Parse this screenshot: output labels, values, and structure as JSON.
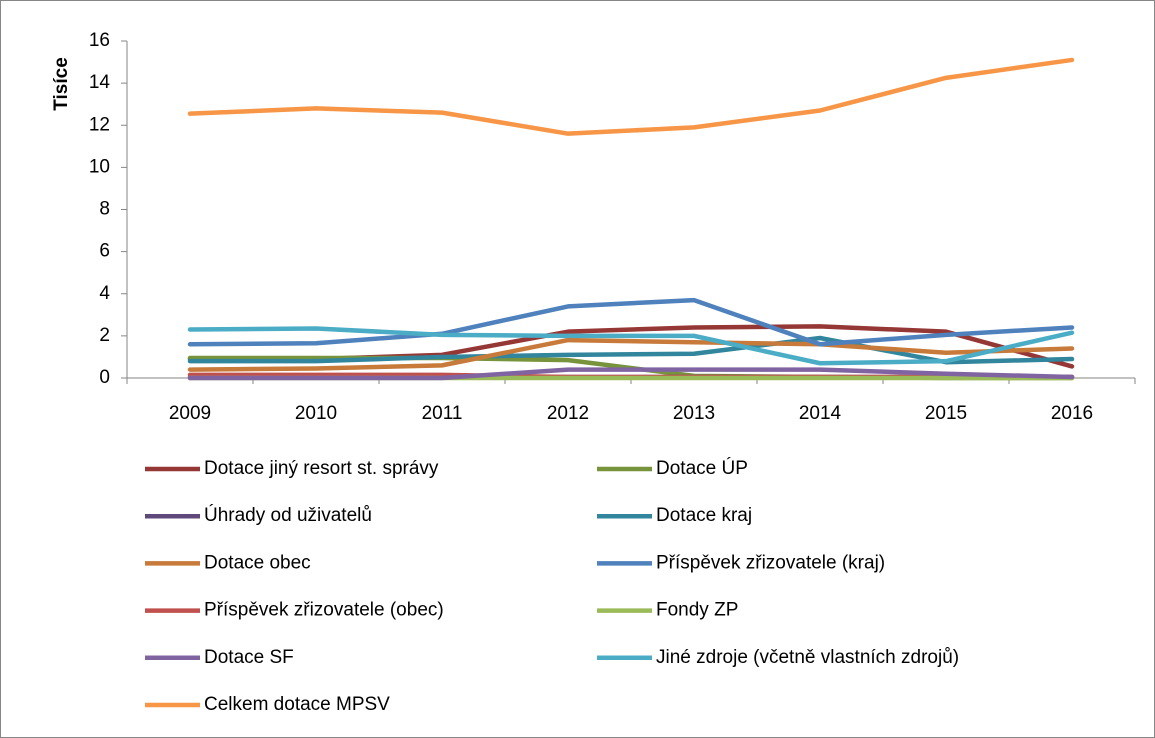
{
  "chart_data": {
    "type": "line",
    "y_label": "Tisíce",
    "categories": [
      "2009",
      "2010",
      "2011",
      "2012",
      "2013",
      "2014",
      "2015",
      "2016"
    ],
    "ylim": [
      0,
      16
    ],
    "yticks": [
      0,
      2,
      4,
      6,
      8,
      10,
      12,
      14,
      16
    ],
    "grid": false,
    "legend": "bottom",
    "series": [
      {
        "name": "Dotace jiný resort st. správy",
        "color": "#953735",
        "values": [
          0.9,
          0.9,
          1.1,
          2.2,
          2.4,
          2.45,
          2.2,
          0.55
        ]
      },
      {
        "name": "Dotace ÚP",
        "color": "#77933c",
        "values": [
          0.95,
          0.95,
          0.95,
          0.85,
          0.1,
          0.05,
          0,
          0
        ]
      },
      {
        "name": "Úhrady od uživatelů",
        "color": "#5f497a",
        "values": [
          0.05,
          0.05,
          0.05,
          0.05,
          0.05,
          0.05,
          0.05,
          0.05
        ]
      },
      {
        "name": "Dotace kraj",
        "color": "#31859c",
        "values": [
          0.8,
          0.8,
          1.0,
          1.1,
          1.15,
          1.9,
          0.75,
          0.9
        ]
      },
      {
        "name": "Dotace obec",
        "color": "#c77a3a",
        "values": [
          0.4,
          0.45,
          0.6,
          1.8,
          1.7,
          1.6,
          1.2,
          1.4
        ]
      },
      {
        "name": "Příspěvek zřizovatele (kraj)",
        "color": "#4f81bd",
        "values": [
          1.6,
          1.65,
          2.1,
          3.4,
          3.7,
          1.6,
          2.05,
          2.4
        ]
      },
      {
        "name": "Příspěvek zřizovatele (obec)",
        "color": "#c0504d",
        "values": [
          0.15,
          0.15,
          0.15,
          0.05,
          0.05,
          0.05,
          0.05,
          0.05
        ]
      },
      {
        "name": "Fondy ZP",
        "color": "#9bbb59",
        "values": [
          0,
          0,
          0,
          0,
          0,
          0,
          0,
          0
        ]
      },
      {
        "name": "Dotace SF",
        "color": "#8064a2",
        "values": [
          0,
          0,
          0,
          0.4,
          0.4,
          0.4,
          0.2,
          0.05
        ]
      },
      {
        "name": "Jiné zdroje (včetně vlastních zdrojů)",
        "color": "#4bacc6",
        "values": [
          2.3,
          2.35,
          2.05,
          2.0,
          2.0,
          0.7,
          0.8,
          2.15
        ]
      },
      {
        "name": "Celkem dotace MPSV",
        "color": "#f79646",
        "values": [
          12.55,
          12.8,
          12.6,
          11.6,
          11.9,
          12.7,
          14.25,
          15.1
        ]
      }
    ]
  }
}
